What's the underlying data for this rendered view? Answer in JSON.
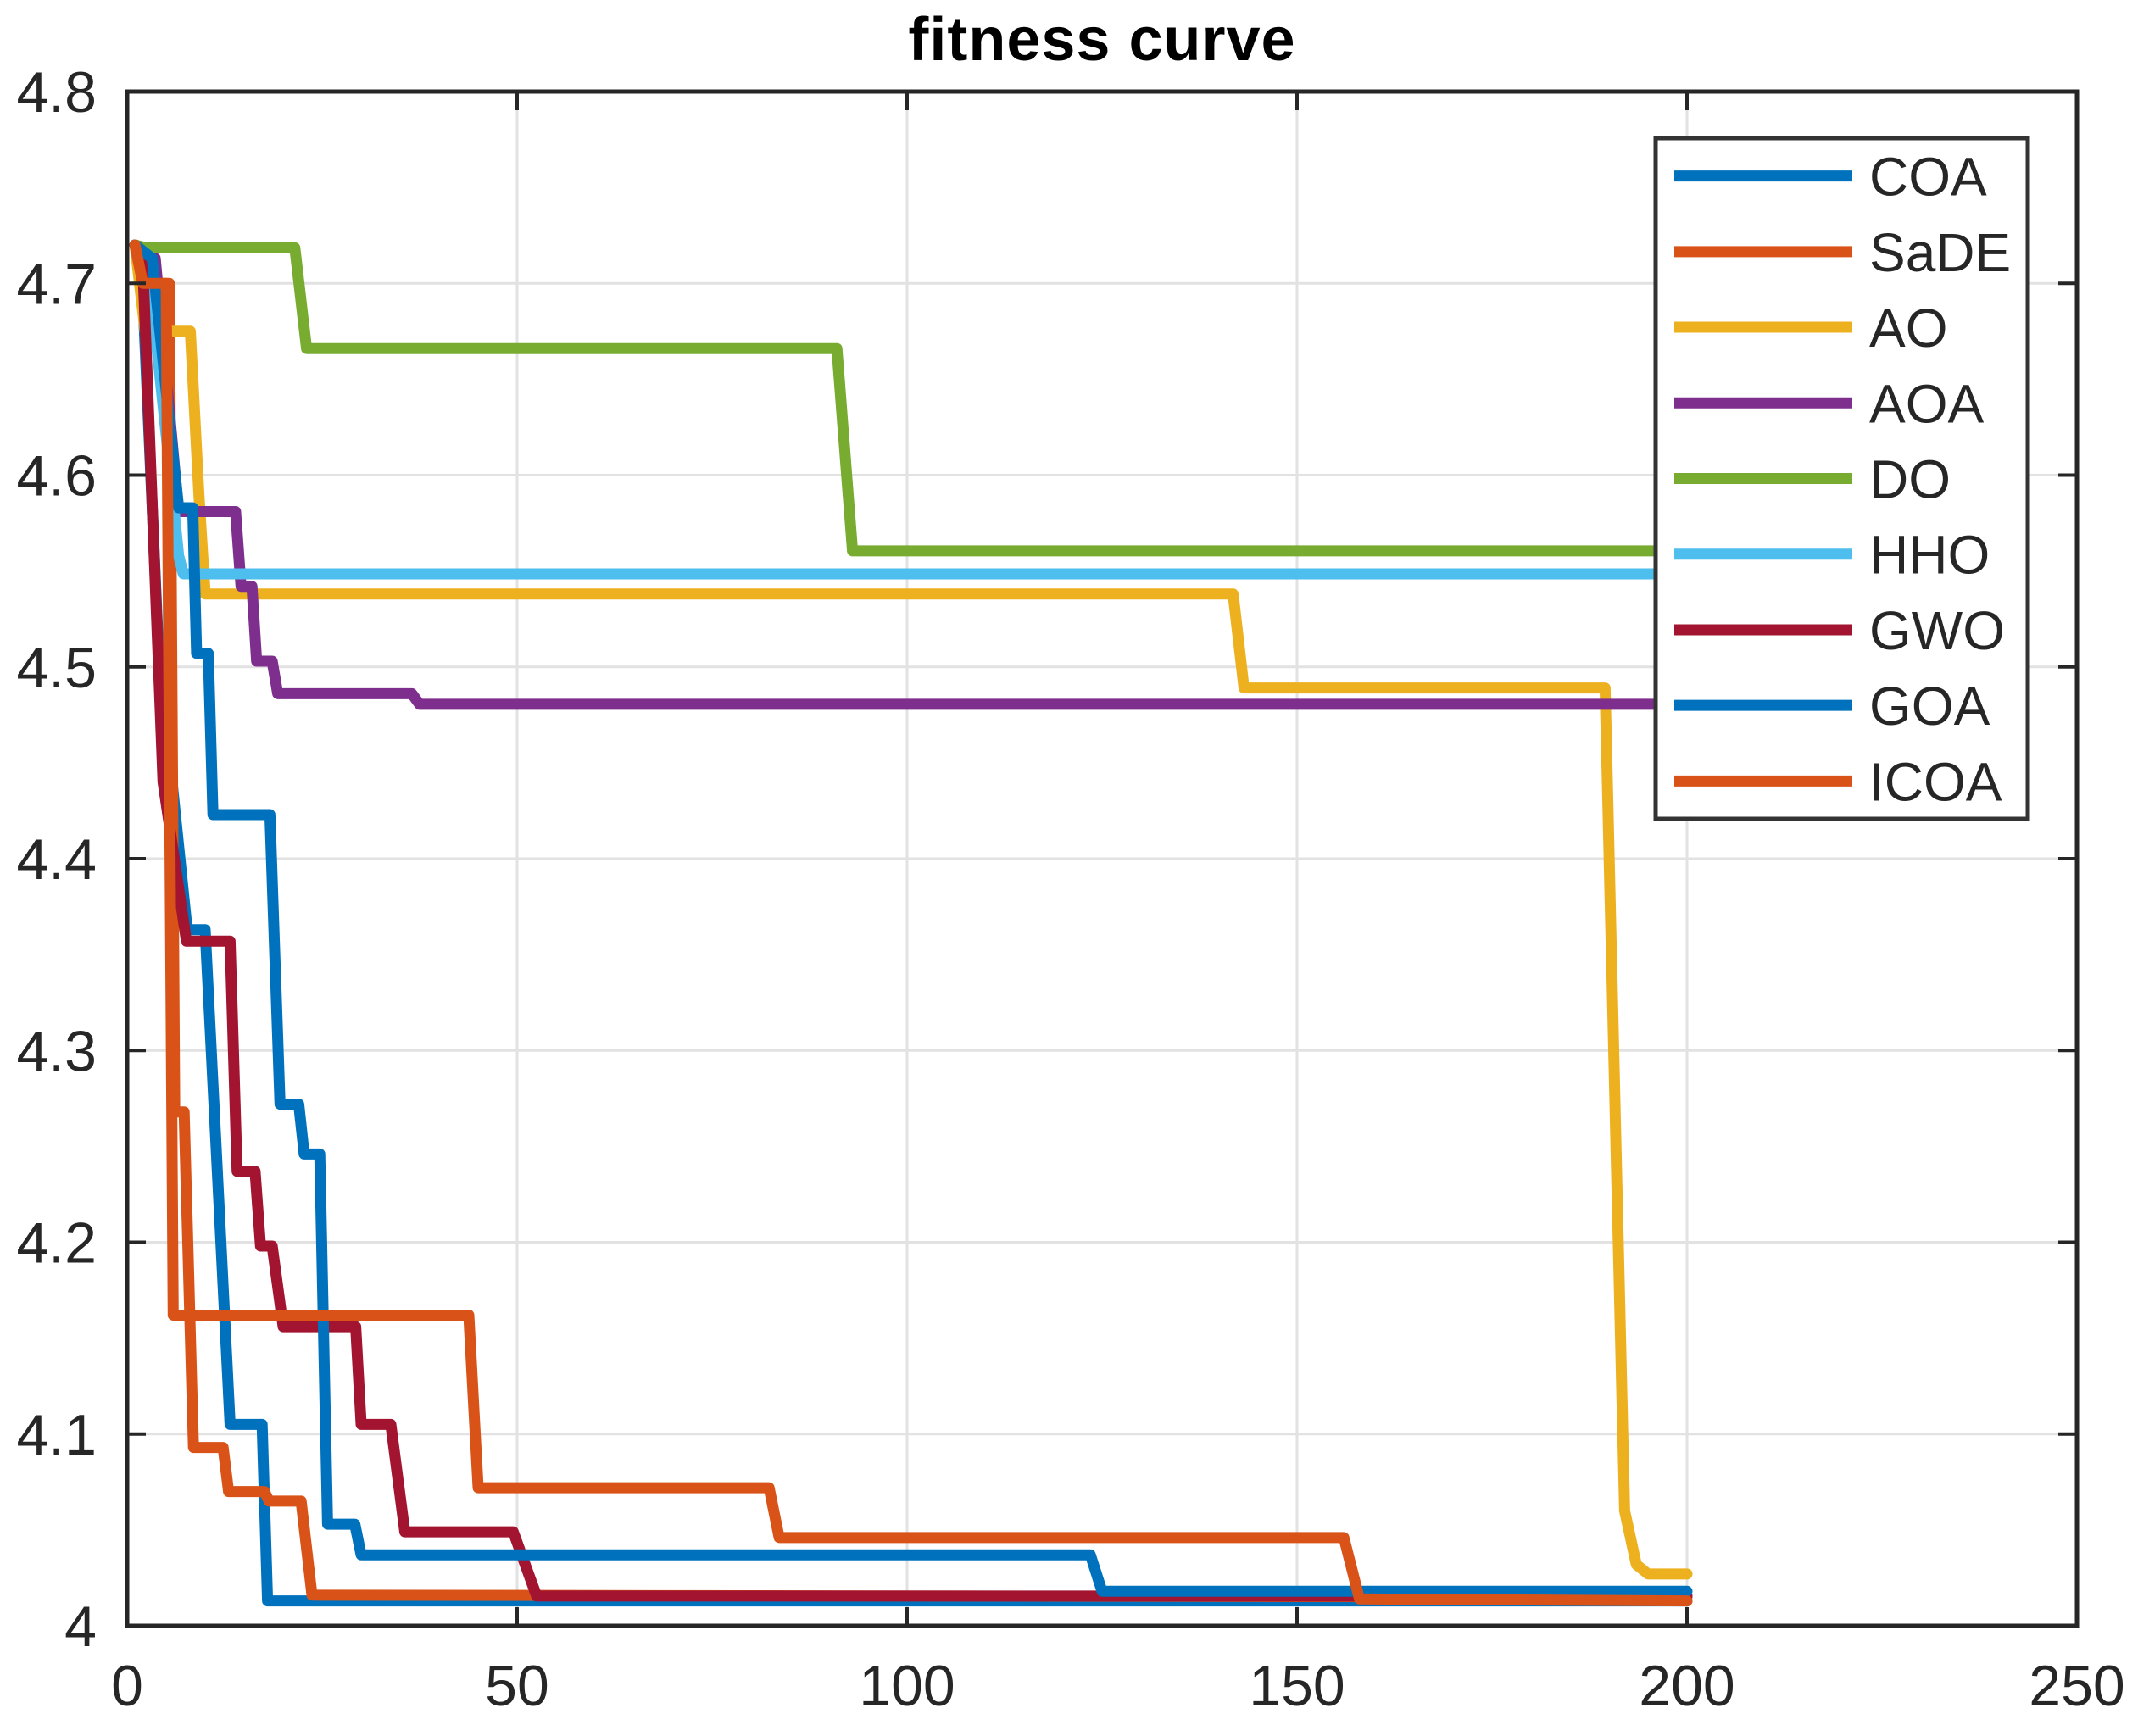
{
  "chart_data": {
    "type": "line",
    "title": "fitness curve",
    "xlabel": "",
    "ylabel": "",
    "xlim": [
      0,
      250
    ],
    "ylim": [
      4.0,
      4.8
    ],
    "xticks": [
      0,
      50,
      100,
      150,
      200,
      250
    ],
    "xtick_labels": [
      "0",
      "50",
      "100",
      "150",
      "200",
      "250"
    ],
    "yticks": [
      4.0,
      4.1,
      4.2,
      4.3,
      4.4,
      4.5,
      4.6,
      4.7,
      4.8
    ],
    "ytick_labels": [
      "4",
      "4.1",
      "4.2",
      "4.3",
      "4.4",
      "4.5",
      "4.6",
      "4.7",
      "4.8"
    ],
    "grid": true,
    "background": "#ffffff",
    "grid_color": "#e2e2e2",
    "axis_color": "#262626",
    "line_width": 13,
    "legend": {
      "position": "top-right",
      "border_color": "#333333",
      "entries": [
        "COA",
        "SaDE",
        "AO",
        "AOA",
        "DO",
        "HHO",
        "GWO",
        "GOA",
        "ICOA"
      ]
    },
    "series": [
      {
        "name": "COA",
        "color": "#0072BD",
        "points": [
          [
            1,
            4.72
          ],
          [
            1.8,
            4.713
          ],
          [
            4,
            4.51
          ],
          [
            7.7,
            4.363
          ],
          [
            10,
            4.363
          ],
          [
            13.2,
            4.105
          ],
          [
            17.3,
            4.105
          ],
          [
            18,
            4.013
          ],
          [
            200,
            4.013
          ]
        ]
      },
      {
        "name": "SaDE",
        "color": "#D95319",
        "points": [
          [
            1,
            4.72
          ],
          [
            1.8,
            4.7
          ],
          [
            5.4,
            4.7
          ],
          [
            6.1,
            4.268
          ],
          [
            7.3,
            4.268
          ],
          [
            8.5,
            4.093
          ],
          [
            12.3,
            4.093
          ],
          [
            13,
            4.07
          ],
          [
            17.6,
            4.07
          ],
          [
            18.2,
            4.065
          ],
          [
            22.3,
            4.065
          ],
          [
            23.7,
            4.016
          ],
          [
            200,
            4.015
          ]
        ]
      },
      {
        "name": "AO",
        "color": "#EDB120",
        "points": [
          [
            1,
            4.72
          ],
          [
            2.3,
            4.675
          ],
          [
            8.1,
            4.675
          ],
          [
            9.2,
            4.59
          ],
          [
            10,
            4.538
          ],
          [
            141.8,
            4.538
          ],
          [
            143.2,
            4.489
          ],
          [
            189.5,
            4.489
          ],
          [
            192,
            4.06
          ],
          [
            193.5,
            4.032
          ],
          [
            195,
            4.027
          ],
          [
            200,
            4.027
          ]
        ]
      },
      {
        "name": "AOA",
        "color": "#7E2F8E",
        "points": [
          [
            1,
            4.72
          ],
          [
            3.6,
            4.713
          ],
          [
            6.6,
            4.581
          ],
          [
            13.9,
            4.581
          ],
          [
            14.6,
            4.542
          ],
          [
            16,
            4.542
          ],
          [
            16.6,
            4.503
          ],
          [
            18.6,
            4.503
          ],
          [
            19.3,
            4.486
          ],
          [
            36.5,
            4.486
          ],
          [
            37.5,
            4.4805
          ],
          [
            200,
            4.4805
          ]
        ]
      },
      {
        "name": "DO",
        "color": "#77AC30",
        "points": [
          [
            1,
            4.72
          ],
          [
            2.5,
            4.7185
          ],
          [
            21.5,
            4.7185
          ],
          [
            23,
            4.666
          ],
          [
            91,
            4.666
          ],
          [
            93,
            4.5605
          ],
          [
            200,
            4.5605
          ]
        ]
      },
      {
        "name": "HHO",
        "color": "#4DBEEE",
        "points": [
          [
            1,
            4.72
          ],
          [
            2.6,
            4.713
          ],
          [
            5.8,
            4.59
          ],
          [
            6.6,
            4.558
          ],
          [
            7.2,
            4.5485
          ],
          [
            200,
            4.5485
          ]
        ]
      },
      {
        "name": "GWO",
        "color": "#A2142F",
        "points": [
          [
            1,
            4.72
          ],
          [
            2,
            4.71
          ],
          [
            4.6,
            4.44
          ],
          [
            7.6,
            4.357
          ],
          [
            13.2,
            4.357
          ],
          [
            14.1,
            4.237
          ],
          [
            16.4,
            4.237
          ],
          [
            17.1,
            4.198
          ],
          [
            18.6,
            4.198
          ],
          [
            20,
            4.156
          ],
          [
            29.3,
            4.156
          ],
          [
            30,
            4.105
          ],
          [
            33.8,
            4.105
          ],
          [
            35.6,
            4.049
          ],
          [
            49.5,
            4.049
          ],
          [
            52.5,
            4.0155
          ],
          [
            200,
            4.0155
          ]
        ]
      },
      {
        "name": "GOA",
        "color": "#0072BD",
        "points": [
          [
            1,
            4.72
          ],
          [
            3.2,
            4.713
          ],
          [
            6.6,
            4.583
          ],
          [
            8.4,
            4.583
          ],
          [
            8.9,
            4.507
          ],
          [
            10.4,
            4.507
          ],
          [
            11,
            4.423
          ],
          [
            18.3,
            4.423
          ],
          [
            19.6,
            4.272
          ],
          [
            22,
            4.272
          ],
          [
            22.7,
            4.246
          ],
          [
            24.7,
            4.246
          ],
          [
            25.7,
            4.053
          ],
          [
            29.2,
            4.053
          ],
          [
            30,
            4.037
          ],
          [
            123.5,
            4.037
          ],
          [
            125,
            4.018
          ],
          [
            200,
            4.018
          ]
        ]
      },
      {
        "name": "ICOA",
        "color": "#D95319",
        "points": [
          [
            1,
            4.72
          ],
          [
            2,
            4.7
          ],
          [
            5,
            4.7
          ],
          [
            5.9,
            4.162
          ],
          [
            43.8,
            4.162
          ],
          [
            45,
            4.072
          ],
          [
            82.3,
            4.072
          ],
          [
            83.6,
            4.046
          ],
          [
            156,
            4.046
          ],
          [
            158,
            4.014
          ],
          [
            200,
            4.013
          ]
        ]
      }
    ]
  }
}
